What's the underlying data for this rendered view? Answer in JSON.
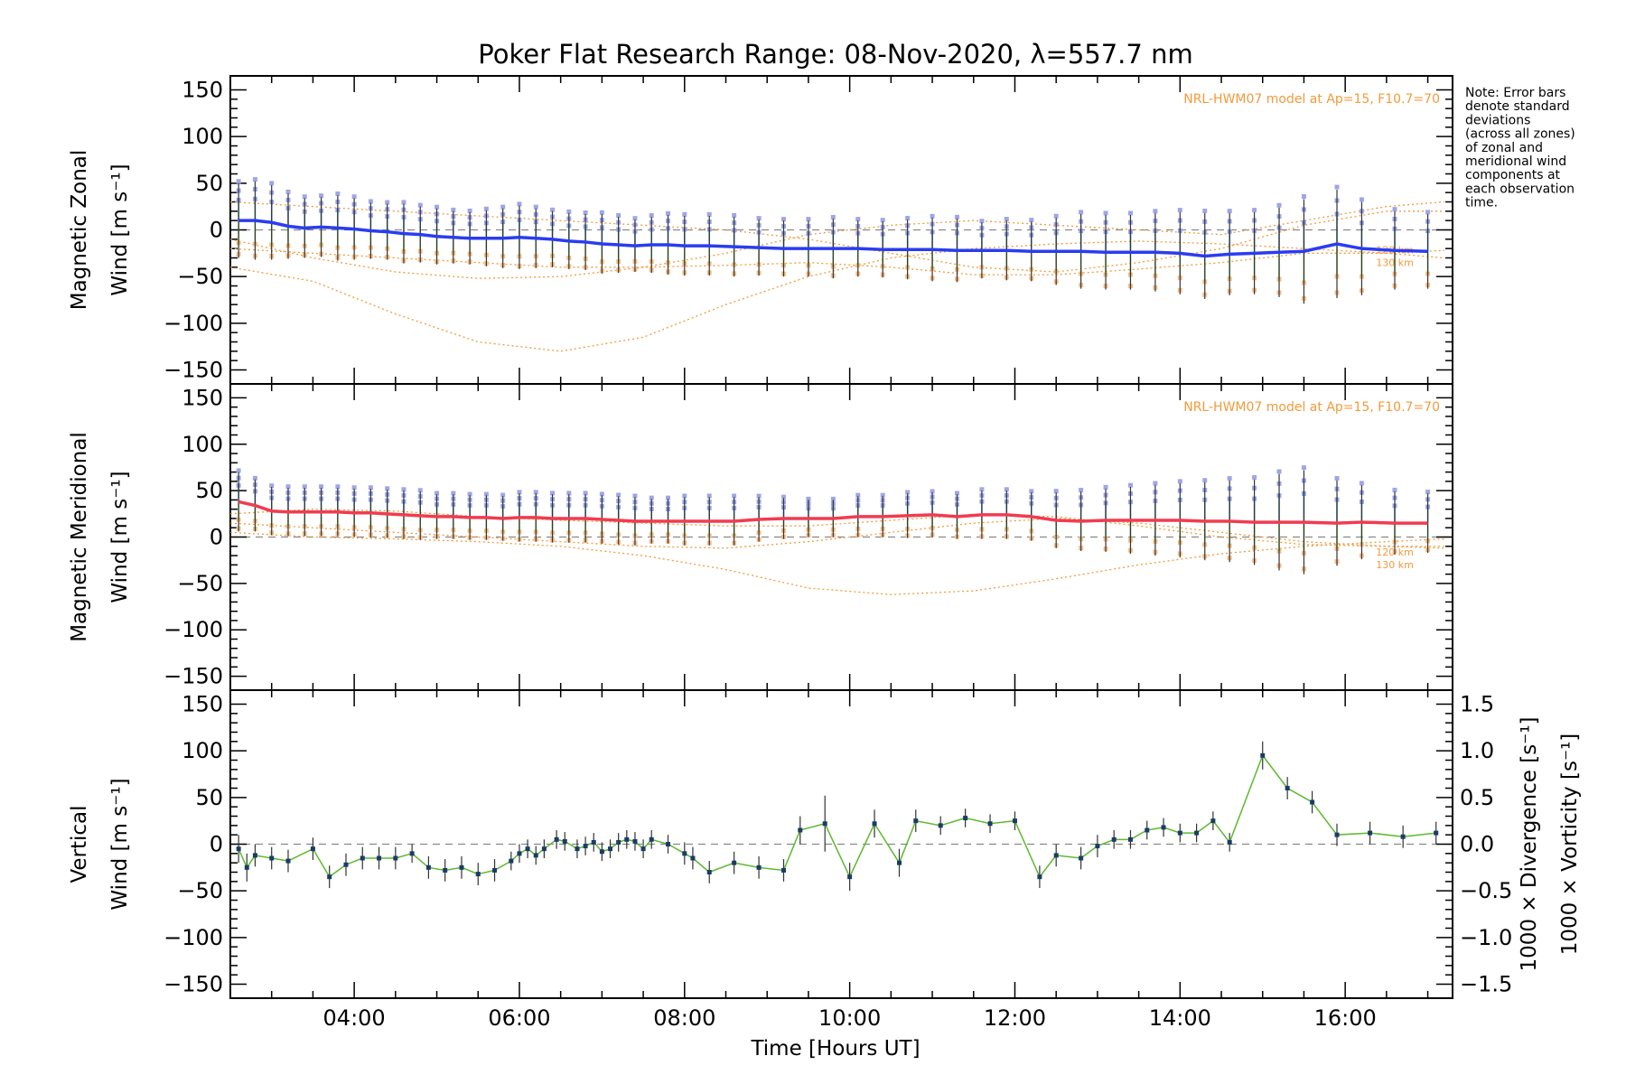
{
  "title": "Poker Flat Research Range: 08-Nov-2020, λ=557.7 nm",
  "note_lines": [
    "Note: Error bars",
    "denote standard",
    "deviations",
    "(across all zones)",
    "of zonal and",
    "meridional wind",
    "components at",
    "each observation",
    "time."
  ],
  "model_label": "NRL-HWM07 model at Ap=15, F10.7=70",
  "model_alt_labels": [
    "120 km",
    "130 km"
  ],
  "colors": {
    "zonal": "#2a3cf2",
    "meridional": "#f23b50",
    "vertical": "#5db92e",
    "divergence": "#4fb0e0",
    "vorticity": "#f2548c",
    "model": "#f39a3a",
    "zones": "#9ea6e8"
  },
  "chart_data": [
    {
      "type": "line",
      "panel": "zonal",
      "ylabel_line1": "Magnetic Zonal",
      "ylabel_line2": "Wind [m s⁻¹]",
      "ylim": [
        -165,
        165
      ],
      "yticks": [
        150,
        100,
        50,
        0,
        -50,
        -100,
        -150
      ],
      "x": [
        2.6,
        2.8,
        3.0,
        3.2,
        3.4,
        3.6,
        3.8,
        4.0,
        4.2,
        4.4,
        4.6,
        4.8,
        5.0,
        5.2,
        5.4,
        5.6,
        5.8,
        6.0,
        6.2,
        6.4,
        6.6,
        6.8,
        7.0,
        7.2,
        7.4,
        7.6,
        7.8,
        8.0,
        8.3,
        8.6,
        8.9,
        9.2,
        9.5,
        9.8,
        10.1,
        10.4,
        10.7,
        11.0,
        11.3,
        11.6,
        11.9,
        12.2,
        12.5,
        12.8,
        13.1,
        13.4,
        13.7,
        14.0,
        14.3,
        14.6,
        14.9,
        15.2,
        15.5,
        15.9,
        16.2,
        16.6,
        17.0
      ],
      "series": [
        {
          "values": [
            10,
            10,
            8,
            4,
            2,
            3,
            2,
            1,
            -1,
            -2,
            -4,
            -5,
            -7,
            -8,
            -9,
            -9,
            -9,
            -8,
            -9,
            -10,
            -12,
            -13,
            -15,
            -16,
            -17,
            -16,
            -16,
            -17,
            -17,
            -18,
            -19,
            -20,
            -20,
            -20,
            -20,
            -21,
            -21,
            -21,
            -22,
            -22,
            -22,
            -23,
            -23,
            -23,
            -24,
            -24,
            -24,
            -25,
            -28,
            -26,
            -25,
            -24,
            -23,
            -15,
            -20,
            -22,
            -23
          ]
        }
      ],
      "errors": [
        40,
        42,
        40,
        35,
        32,
        32,
        35,
        33,
        30,
        30,
        32,
        30,
        30,
        28,
        28,
        30,
        32,
        34,
        32,
        30,
        30,
        30,
        32,
        30,
        28,
        30,
        32,
        32,
        32,
        32,
        30,
        30,
        30,
        32,
        30,
        30,
        32,
        34,
        34,
        30,
        32,
        32,
        36,
        40,
        40,
        40,
        42,
        44,
        46,
        44,
        44,
        48,
        56,
        58,
        50,
        42,
        40
      ],
      "model_profiles": [
        {
          "name": "",
          "x": [
            2.5,
            3.5,
            4.5,
            5.5,
            6.5,
            7.5,
            8.5,
            9.5,
            10.5,
            11.5,
            12.5,
            13.5,
            14.5,
            15.5,
            16.5,
            17.2
          ],
          "values": [
            -40,
            -55,
            -90,
            -120,
            -130,
            -115,
            -80,
            -50,
            -30,
            -20,
            -15,
            -12,
            -15,
            -20,
            -25,
            -30
          ]
        },
        {
          "name": "",
          "x": [
            2.5,
            3.5,
            4.5,
            5.5,
            6.5,
            7.5,
            8.5,
            9.5,
            10.5,
            11.5,
            12.5,
            13.5,
            14.5,
            15.5,
            16.5,
            17.2
          ],
          "values": [
            -10,
            -30,
            -45,
            -52,
            -50,
            -40,
            -25,
            -5,
            5,
            10,
            5,
            0,
            -5,
            10,
            25,
            30
          ]
        },
        {
          "name": "",
          "x": [
            2.5,
            3.5,
            4.5,
            5.5,
            6.5,
            7.5,
            8.5,
            9.5,
            10.5,
            11.5,
            12.5,
            13.5,
            14.5,
            15.5,
            16.5,
            17.2
          ],
          "values": [
            30,
            25,
            20,
            15,
            10,
            5,
            0,
            -10,
            -25,
            -40,
            -45,
            -35,
            -20,
            5,
            20,
            20
          ]
        },
        {
          "name": "",
          "x": [
            2.5,
            3.5,
            4.5,
            5.5,
            6.5,
            7.5,
            8.5,
            9.5,
            10.5,
            11.5,
            12.5,
            13.5,
            14.5,
            15.5,
            16.5,
            17.2
          ],
          "values": [
            -20,
            -25,
            -30,
            -35,
            -40,
            -40,
            -38,
            -35,
            -40,
            -48,
            -48,
            -42,
            -35,
            -25,
            -25,
            -22
          ]
        }
      ],
      "model_label_xy": [
        16.6,
        -25
      ]
    },
    {
      "type": "line",
      "panel": "meridional",
      "ylabel_line1": "Magnetic Meridional",
      "ylabel_line2": "Wind [m s⁻¹]",
      "ylim": [
        -165,
        165
      ],
      "yticks": [
        150,
        100,
        50,
        0,
        -50,
        -100,
        -150
      ],
      "x": [
        2.6,
        2.8,
        3.0,
        3.2,
        3.4,
        3.6,
        3.8,
        4.0,
        4.2,
        4.4,
        4.6,
        4.8,
        5.0,
        5.2,
        5.4,
        5.6,
        5.8,
        6.0,
        6.2,
        6.4,
        6.6,
        6.8,
        7.0,
        7.2,
        7.4,
        7.6,
        7.8,
        8.0,
        8.3,
        8.6,
        8.9,
        9.2,
        9.5,
        9.8,
        10.1,
        10.4,
        10.7,
        11.0,
        11.3,
        11.6,
        11.9,
        12.2,
        12.5,
        12.8,
        13.1,
        13.4,
        13.7,
        14.0,
        14.3,
        14.6,
        14.9,
        15.2,
        15.5,
        15.9,
        16.2,
        16.6,
        17.0
      ],
      "series": [
        {
          "values": [
            38,
            34,
            28,
            27,
            27,
            27,
            27,
            26,
            26,
            25,
            24,
            23,
            22,
            22,
            21,
            21,
            20,
            21,
            21,
            20,
            20,
            20,
            19,
            18,
            17,
            17,
            17,
            17,
            17,
            17,
            19,
            20,
            20,
            20,
            22,
            22,
            23,
            24,
            22,
            24,
            24,
            22,
            18,
            17,
            18,
            18,
            18,
            18,
            17,
            17,
            16,
            16,
            16,
            15,
            16,
            15,
            15
          ]
        }
      ],
      "errors": [
        32,
        28,
        26,
        26,
        26,
        26,
        26,
        26,
        26,
        26,
        26,
        26,
        24,
        24,
        24,
        24,
        24,
        26,
        26,
        26,
        26,
        26,
        26,
        26,
        26,
        24,
        24,
        26,
        26,
        26,
        24,
        22,
        20,
        20,
        22,
        22,
        24,
        24,
        24,
        26,
        26,
        26,
        30,
        32,
        34,
        36,
        38,
        40,
        42,
        44,
        46,
        52,
        56,
        46,
        40,
        34,
        32
      ],
      "model_profiles": [
        {
          "name": "",
          "x": [
            2.5,
            3.5,
            4.5,
            5.5,
            6.5,
            7.5,
            8.5,
            9.5,
            10.5,
            11.5,
            12.5,
            13.5,
            14.5,
            15.5,
            16.5,
            17.2
          ],
          "values": [
            5,
            0,
            -2,
            -5,
            -10,
            -20,
            -35,
            -55,
            -62,
            -58,
            -45,
            -30,
            -18,
            -10,
            -5,
            -2
          ]
        },
        {
          "name": "",
          "x": [
            2.5,
            3.5,
            4.5,
            5.5,
            6.5,
            7.5,
            8.5,
            9.5,
            10.5,
            11.5,
            12.5,
            13.5,
            14.5,
            15.5,
            16.5,
            17.2
          ],
          "values": [
            15,
            10,
            5,
            0,
            -5,
            -10,
            -12,
            -5,
            5,
            15,
            20,
            15,
            5,
            -5,
            -10,
            -12
          ]
        },
        {
          "name": "",
          "x": [
            2.5,
            3.5,
            4.5,
            5.5,
            6.5,
            7.5,
            8.5,
            9.5,
            10.5,
            11.5,
            12.5,
            13.5,
            14.5,
            15.5,
            16.5,
            17.2
          ],
          "values": [
            25,
            30,
            28,
            22,
            18,
            15,
            12,
            12,
            18,
            24,
            22,
            12,
            0,
            -8,
            -10,
            -10
          ]
        }
      ],
      "model_label_xy": [
        16.6,
        -20
      ]
    },
    {
      "type": "line",
      "panel": "vertical",
      "ylabel_line1": "Vertical",
      "ylabel_line2": "Wind [m s⁻¹]",
      "xlabel": "Time [Hours UT]",
      "right_ylabel_divergence": "1000 × Divergence [s⁻¹]",
      "right_ylabel_vorticity": "1000 × Vorticity [s⁻¹]",
      "ylim": [
        -165,
        165
      ],
      "yticks": [
        150,
        100,
        50,
        0,
        -50,
        -100,
        -150
      ],
      "right_ylim": [
        -1.65,
        1.65
      ],
      "right_yticks": [
        1.5,
        1.0,
        0.5,
        0.0,
        -0.5,
        -1.0,
        -1.5
      ],
      "right_yticklabels": [
        "1.5",
        "1.0",
        "0.5",
        "0.0",
        "−0.5",
        "−1.0",
        "−1.5"
      ],
      "xlim": [
        2.5,
        17.3
      ],
      "xticks": [
        4,
        6,
        8,
        10,
        12,
        14,
        16
      ],
      "xticklabels": [
        "04:00",
        "06:00",
        "08:00",
        "10:00",
        "12:00",
        "14:00",
        "16:00"
      ],
      "x": [
        2.6,
        2.7,
        2.8,
        3.0,
        3.2,
        3.5,
        3.7,
        3.9,
        4.1,
        4.3,
        4.5,
        4.7,
        4.9,
        5.1,
        5.3,
        5.5,
        5.7,
        5.9,
        6.0,
        6.1,
        6.2,
        6.3,
        6.45,
        6.55,
        6.7,
        6.8,
        6.9,
        7.0,
        7.1,
        7.2,
        7.3,
        7.4,
        7.5,
        7.6,
        7.8,
        8.0,
        8.1,
        8.3,
        8.6,
        8.9,
        9.2,
        9.4,
        9.7,
        10.0,
        10.3,
        10.6,
        10.8,
        11.1,
        11.4,
        11.7,
        12.0,
        12.3,
        12.5,
        12.8,
        13.0,
        13.2,
        13.4,
        13.6,
        13.8,
        14.0,
        14.2,
        14.4,
        14.6,
        15.0,
        15.3,
        15.6,
        15.9,
        16.3,
        16.7,
        17.1
      ],
      "series": [
        {
          "values": [
            -5,
            -25,
            -12,
            -15,
            -18,
            -5,
            -35,
            -22,
            -15,
            -15,
            -15,
            -10,
            -25,
            -28,
            -25,
            -32,
            -28,
            -18,
            -10,
            -5,
            -12,
            -5,
            5,
            3,
            -5,
            -2,
            2,
            -8,
            -5,
            2,
            5,
            3,
            -5,
            5,
            0,
            -10,
            -15,
            -30,
            -20,
            -25,
            -28,
            15,
            22,
            -35,
            22,
            -20,
            25,
            20,
            28,
            22,
            25,
            -35,
            -12,
            -15,
            -2,
            5,
            5,
            15,
            18,
            12,
            12,
            25,
            2,
            95,
            60,
            45,
            10,
            12,
            8,
            12
          ]
        }
      ],
      "errors": [
        15,
        15,
        12,
        12,
        12,
        12,
        12,
        12,
        12,
        12,
        12,
        10,
        12,
        12,
        12,
        12,
        12,
        10,
        10,
        10,
        10,
        10,
        10,
        10,
        10,
        10,
        10,
        10,
        10,
        10,
        10,
        10,
        10,
        10,
        10,
        12,
        12,
        12,
        12,
        12,
        12,
        15,
        30,
        15,
        15,
        15,
        12,
        10,
        10,
        10,
        10,
        12,
        12,
        12,
        12,
        10,
        10,
        10,
        10,
        10,
        10,
        10,
        10,
        15,
        12,
        12,
        12,
        12,
        12,
        12
      ]
    }
  ]
}
